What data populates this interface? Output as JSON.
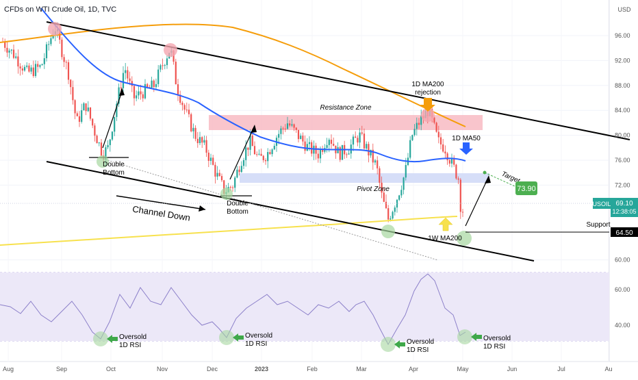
{
  "header": {
    "title": "CFDs on WTI Crude Oil, 1D, TVC"
  },
  "chart_data": {
    "type": "candlestick",
    "instrument": "USOIL",
    "currency": "USD",
    "price_axis": {
      "ticks": [
        "96.00",
        "92.00",
        "88.00",
        "84.00",
        "80.00",
        "76.00",
        "72.00",
        "60.00"
      ],
      "current_price": "69.10",
      "current_label": "USOIL",
      "countdown": "12:38:05",
      "support_price": "64.50"
    },
    "time_axis": {
      "ticks": [
        "Aug",
        "Sep",
        "Oct",
        "Nov",
        "Dec",
        "2023",
        "Feb",
        "Mar",
        "Apr",
        "May",
        "Jun",
        "Jul",
        "Au"
      ]
    },
    "annotations": {
      "resistance": "Resistance Zone",
      "pivot": "Pivot Zone",
      "channel": "Channel Down",
      "ma200_1d": "1D MA200",
      "rejection": "rejection",
      "ma50_1d": "1D MA50",
      "ma200_1w": "1W MA200",
      "target_label": "Target",
      "target_value": "73.90",
      "support": "Support",
      "double_word": "Double",
      "bottom_word": "Bottom",
      "oversold": "Oversold",
      "rsi_1d": "1D RSI"
    },
    "rsi_panel": {
      "ticks": [
        "60.00",
        "40.00"
      ]
    },
    "colors": {
      "bull": "#26a69a",
      "bear": "#ef5350",
      "ma50": "#2962ff",
      "ma200": "#f59d0a",
      "ma200_weekly": "#f7e14d",
      "rsi": "#8b7fc9",
      "target_badge": "#4caf50",
      "resistance_zone": "#f7b2bb",
      "pivot_zone": "#cfd8f7"
    }
  }
}
